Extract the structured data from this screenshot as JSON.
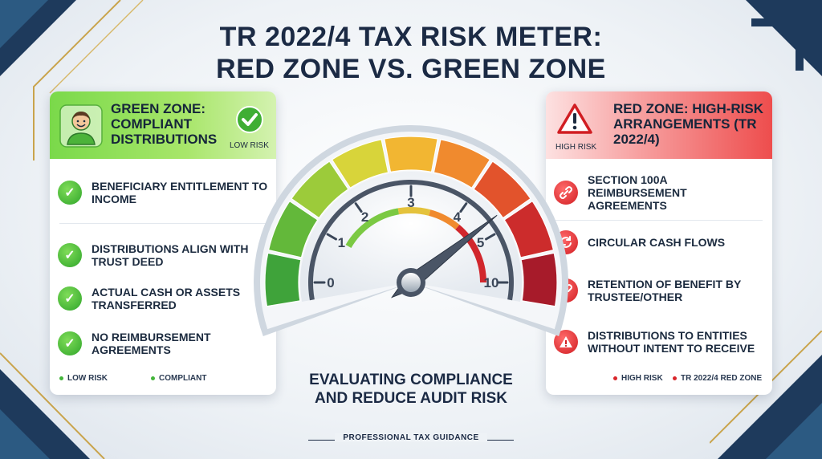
{
  "title": {
    "line1": "TR 2022/4 TAX RISK METER:",
    "line2": "RED ZONE VS. GREEN ZONE"
  },
  "green_panel": {
    "title": "GREEN ZONE: COMPLIANT DISTRIBUTIONS",
    "badge_label": "LOW RISK",
    "avatar_icon": "smiling-person-icon",
    "badge_icon": "check-circle-icon",
    "items": [
      {
        "text": "Beneficiary entitlement to income",
        "icon": "check-icon"
      },
      {
        "text": "Distributions align with trust deed",
        "icon": "check-icon"
      },
      {
        "text": "Actual cash or assets transferred",
        "icon": "check-icon"
      },
      {
        "text": "No reimbursement agreements",
        "icon": "check-icon"
      }
    ],
    "footer": [
      "LOW RISK",
      "COMPLIANT"
    ],
    "accent": "#43b53a"
  },
  "red_panel": {
    "title": "RED ZONE: HIGH-RISK ARRANGEMENTS (TR 2022/4)",
    "badge_label": "HIGH RISK",
    "badge_icon": "warning-triangle-icon",
    "items": [
      {
        "text": "Section 100A reimbursement agreements",
        "icon": "broken-link-icon"
      },
      {
        "text": "Circular cash flows",
        "icon": "circular-arrows-icon"
      },
      {
        "text": "Retention of benefit by trustee/other",
        "icon": "link-icon"
      },
      {
        "text": "Distributions to entities without intent to receive",
        "icon": "warning-icon"
      }
    ],
    "footer": [
      "HIGH RISK",
      "TR 2022/4 RED ZONE"
    ],
    "accent": "#d9252a"
  },
  "gauge": {
    "ticks": [
      "0",
      "1",
      "2",
      "3",
      "4",
      "5",
      "10"
    ],
    "needle_value": 5
  },
  "subtitle": {
    "line1": "EVALUATING COMPLIANCE",
    "line2": "AND REDUCE AUDIT RISK"
  },
  "footer": "PROFESSIONAL TAX GUIDANCE"
}
